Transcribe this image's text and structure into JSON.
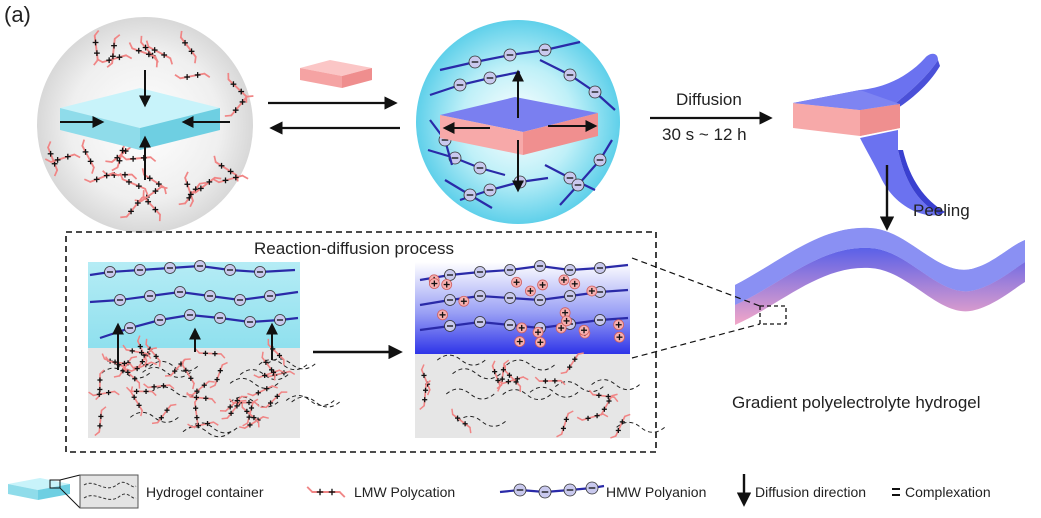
{
  "panel_label": "(a)",
  "arrows": {
    "diffusion": "Diffusion",
    "time": "30 s ~ 12 h",
    "peeling": "Peeling"
  },
  "inset": {
    "title": "Reaction-diffusion process"
  },
  "result_caption": "Gradient polyelectrolyte hydrogel",
  "legend": {
    "hydrogel_container": "Hydrogel container",
    "lmw_polycation": "LMW  Polycation",
    "hmw_polyanion": "HMW Polyanion",
    "diffusion_direction": "Diffusion direction",
    "complexation": "Complexation"
  },
  "colors": {
    "polycation": "#f08585",
    "polyanion": "#2a2aa8",
    "hydrogel_blue": "#8fe0ee",
    "hydrogel_pink": "#f7a9a9",
    "gradient_blue": "#6a72f0",
    "gel_gray": "#e6e6e6"
  }
}
